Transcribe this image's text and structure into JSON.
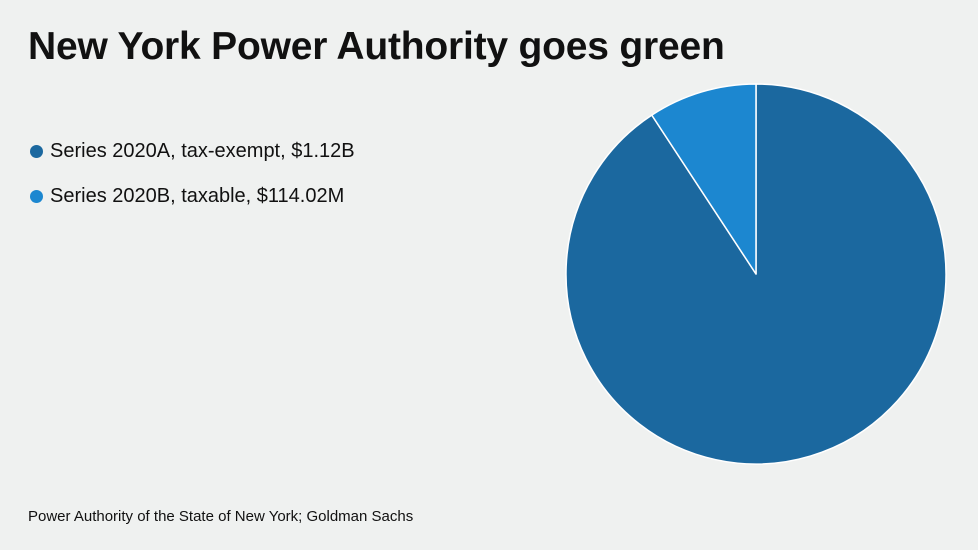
{
  "chart_data": {
    "type": "pie",
    "title": "New York Power Authority goes green",
    "slices": [
      {
        "label": "Series 2020A, tax-exempt, $1.12B",
        "value": 1120,
        "color": "#1b689f"
      },
      {
        "label": "Series 2020B, taxable, $114.02M",
        "value": 114.02,
        "color": "#1c87d0"
      }
    ],
    "legend_position": "top-left",
    "source": "Power Authority of the State of New York; Goldman Sachs"
  }
}
